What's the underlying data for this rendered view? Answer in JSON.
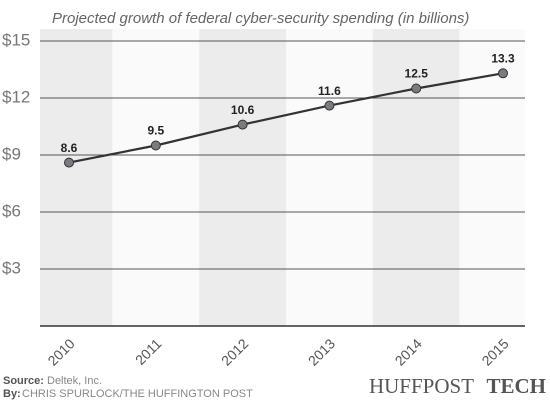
{
  "chart_data": {
    "type": "line",
    "title": "Projected growth of federal cyber-security spending (in billions)",
    "categories": [
      "2010",
      "2011",
      "2012",
      "2013",
      "2014",
      "2015"
    ],
    "values": [
      8.6,
      9.5,
      10.6,
      11.6,
      12.5,
      13.3
    ],
    "color": "#333333",
    "marker_color": "#7a7a80",
    "ylim": [
      0,
      15
    ],
    "yticks": [
      {
        "value": 3,
        "label": "$3"
      },
      {
        "value": 6,
        "label": "$6"
      },
      {
        "value": 9,
        "label": "$9"
      },
      {
        "value": 12,
        "label": "$12"
      },
      {
        "value": 15,
        "label": "$15"
      }
    ],
    "grid": true,
    "source_label": "Source:",
    "source": "Deltek, Inc.",
    "by_label": "By:",
    "by": "CHRIS SPURLOCK/THE HUFFINGTON POST",
    "logo": "HUFFPOST",
    "logo_suffix": "TECH"
  }
}
